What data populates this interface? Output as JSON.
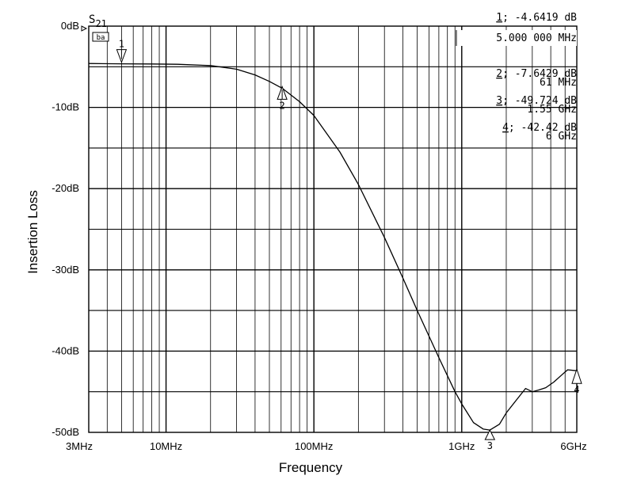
{
  "chart_data": {
    "type": "line",
    "xlabel": "Frequency",
    "ylabel": "Insertion Loss",
    "x_scale": "log",
    "xlim_hz": [
      3000000,
      6000000000
    ],
    "ylim": [
      -50,
      0
    ],
    "grid": true,
    "y_ticks": [
      {
        "value": 0,
        "label": "0dB"
      },
      {
        "value": -10,
        "label": "-10dB"
      },
      {
        "value": -20,
        "label": "-20dB"
      },
      {
        "value": -30,
        "label": "-30dB"
      },
      {
        "value": -40,
        "label": "-40dB"
      },
      {
        "value": -50,
        "label": "-50dB"
      }
    ],
    "x_ticks": [
      {
        "value": 3000000,
        "label": "3MHz"
      },
      {
        "value": 10000000,
        "label": "10MHz"
      },
      {
        "value": 100000000,
        "label": "100MHz"
      },
      {
        "value": 1000000000,
        "label": "1GHz"
      },
      {
        "value": 6000000000,
        "label": "6GHz"
      }
    ],
    "series": [
      {
        "name": "S21",
        "x": [
          3000000,
          5000000,
          8000000,
          12000000,
          20000000,
          30000000,
          40000000,
          50000000,
          61000000,
          80000000,
          100000000,
          150000000,
          200000000,
          300000000,
          400000000,
          500000000,
          700000000,
          900000000,
          1000000000,
          1200000000,
          1400000000,
          1550000000,
          1800000000,
          2000000000,
          2300000000,
          2700000000,
          3000000000,
          3300000000,
          3700000000,
          4200000000,
          4700000000,
          5200000000,
          6000000000
        ],
        "y": [
          -4.6,
          -4.64,
          -4.66,
          -4.7,
          -4.85,
          -5.3,
          -6.0,
          -6.8,
          -7.64,
          -9.3,
          -11.0,
          -15.5,
          -19.5,
          -26.0,
          -31.0,
          -35.0,
          -40.8,
          -45.0,
          -46.5,
          -48.8,
          -49.6,
          -49.72,
          -49.0,
          -47.6,
          -46.2,
          -44.6,
          -45.0,
          -44.8,
          -44.5,
          -43.8,
          -43.0,
          -42.3,
          -42.42
        ]
      }
    ],
    "markers": [
      {
        "id": "1",
        "freq_hz": 5000000,
        "value_db": -4.6419
      },
      {
        "id": "2",
        "freq_hz": 61000000,
        "value_db": -7.6429
      },
      {
        "id": "3",
        "freq_hz": 1550000000,
        "value_db": -49.724
      },
      {
        "id": "4",
        "freq_hz": 6000000000,
        "value_db": -42.42
      }
    ]
  },
  "trace_label": {
    "main": "S",
    "sub": "21"
  },
  "scale_badge": "ba",
  "readouts": [
    {
      "id": "1",
      "sep": ";",
      "value": "-4.6419 dB",
      "freq": "5.000 000 MHz"
    },
    {
      "id": "2",
      "sep": ";",
      "value": "-7.6429 dB",
      "freq": "61 MHz"
    },
    {
      "id": "3",
      "sep": ";",
      "value": "-49.724 dB",
      "freq": "1.55 GHz"
    },
    {
      "id": "4",
      "sep": ";",
      "value": "-42.42  dB",
      "freq": "6 GHz"
    }
  ]
}
